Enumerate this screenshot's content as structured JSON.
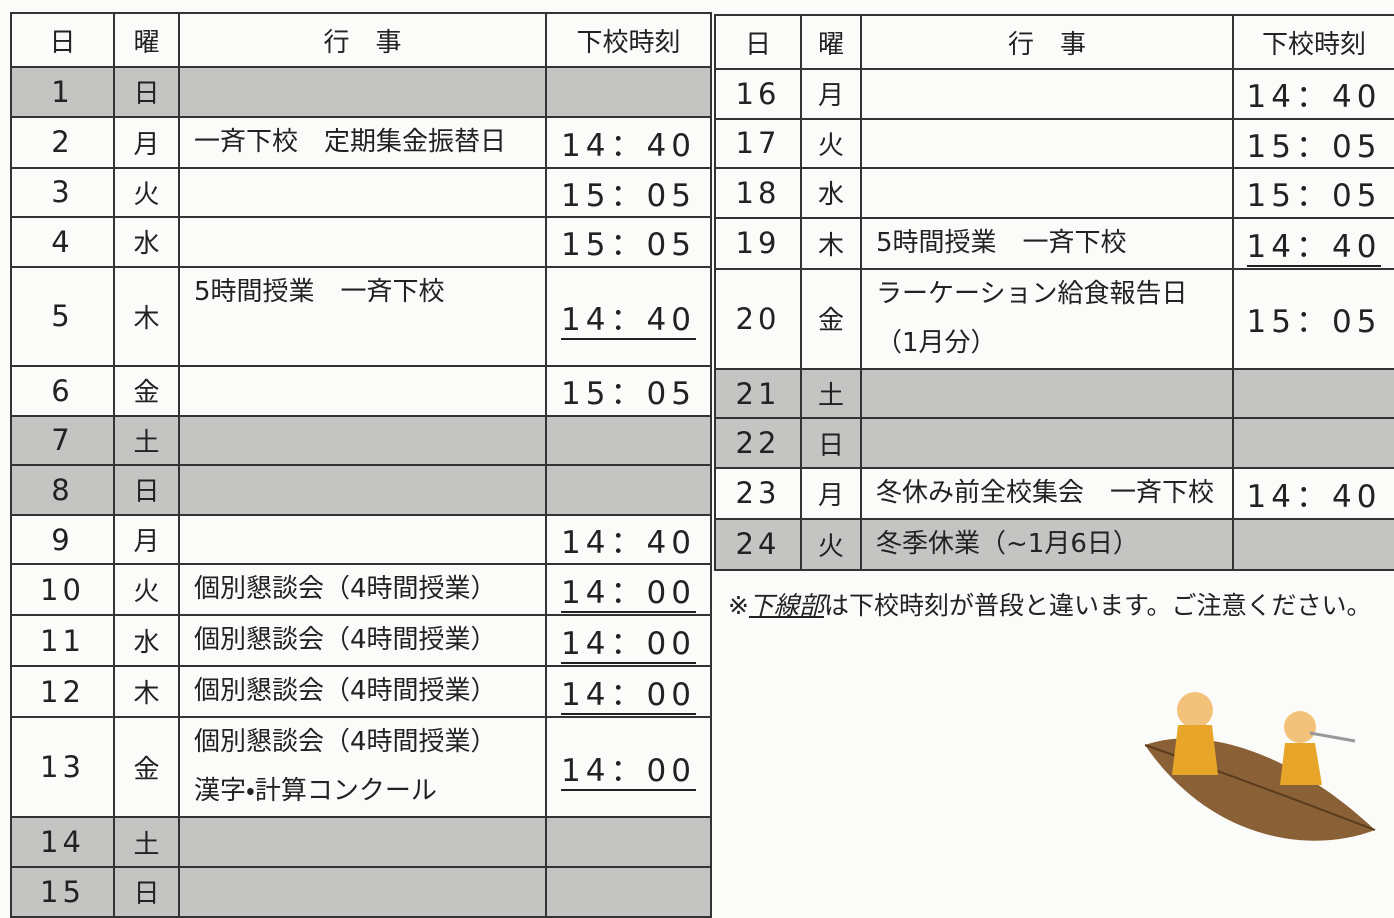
{
  "left_table": {
    "header": [
      "日",
      "曜",
      "行　事",
      "下校時刻"
    ],
    "rows": [
      {
        "day": "1",
        "weekday": "日",
        "holiday": true
      },
      {
        "day": "2",
        "weekday": "月",
        "events": [
          "一斉下校　定期集金振替日"
        ],
        "time": "14：40"
      },
      {
        "day": "3",
        "weekday": "火",
        "time": "15：05"
      },
      {
        "day": "4",
        "weekday": "水",
        "time": "15：05"
      },
      {
        "day": "5",
        "weekday": "木",
        "events": [
          "5時間授業　一斉下校"
        ],
        "time": "14：40",
        "underline": true
      },
      {
        "day": "6",
        "weekday": "金",
        "time": "15：05"
      },
      {
        "day": "7",
        "weekday": "土",
        "holiday": true
      },
      {
        "day": "8",
        "weekday": "日",
        "holiday": true
      },
      {
        "day": "9",
        "weekday": "月",
        "time": "14：40"
      },
      {
        "day": "10",
        "weekday": "火",
        "events": [
          "個別懇談会（4時間授業）"
        ],
        "time": "14：00",
        "underline": true
      },
      {
        "day": "11",
        "weekday": "水",
        "events": [
          "個別懇談会（4時間授業）"
        ],
        "time": "14：00",
        "underline": true
      },
      {
        "day": "12",
        "weekday": "木",
        "events": [
          "個別懇談会（4時間授業）"
        ],
        "time": "14：00",
        "underline": true
      },
      {
        "day": "13",
        "weekday": "金",
        "events": [
          "個別懇談会（4時間授業）",
          "漢字・計算コンクール"
        ],
        "time": "14：00",
        "underline": true
      },
      {
        "day": "14",
        "weekday": "土",
        "holiday": true
      },
      {
        "day": "15",
        "weekday": "日",
        "holiday": true
      }
    ]
  },
  "right_table": {
    "header": [
      "日",
      "曜",
      "行　事",
      "下校時刻"
    ],
    "rows": [
      {
        "day": "16",
        "weekday": "月",
        "time": "14：40"
      },
      {
        "day": "17",
        "weekday": "火",
        "time": "15：05"
      },
      {
        "day": "18",
        "weekday": "水",
        "time": "15：05"
      },
      {
        "day": "19",
        "weekday": "木",
        "events": [
          "5時間授業　一斉下校"
        ],
        "time": "14：40",
        "underline": true
      },
      {
        "day": "20",
        "weekday": "金",
        "events": [
          "ラーケーション給食報告日",
          "（1月分）"
        ],
        "time": "15：05"
      },
      {
        "day": "21",
        "weekday": "土",
        "holiday": true
      },
      {
        "day": "22",
        "weekday": "日",
        "holiday": true
      },
      {
        "day": "23",
        "weekday": "月",
        "events": [
          "冬休み前全校集会　一斉下校"
        ],
        "time": "14：40"
      },
      {
        "day": "24",
        "weekday": "火",
        "events": [
          "冬季休業（~1月6日）"
        ],
        "holiday": true
      }
    ]
  },
  "note": {
    "mark": "※",
    "underlined": "下線部",
    "text": "は下校時刻が普段と違います。ご注意ください。"
  }
}
